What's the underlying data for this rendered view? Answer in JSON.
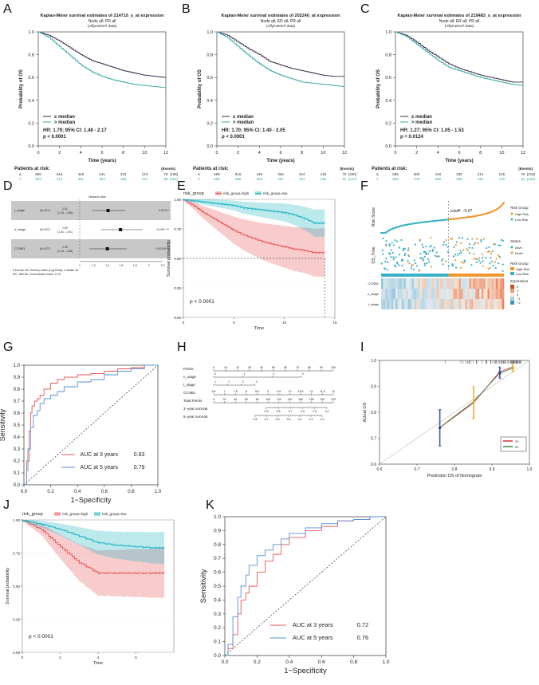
{
  "panel_labels": [
    "A",
    "B",
    "C",
    "D",
    "E",
    "F",
    "G",
    "H",
    "I",
    "J",
    "K"
  ],
  "km": [
    {
      "title": "Kaplan-Meier survival estimates of 214710_s_at expression",
      "sub1": "Node all; PR all",
      "sub2": "(Affymetrix® data)",
      "hr": "HR: 1.79; 95% CI: 1.48 - 2.17",
      "p": "p < 0.0001",
      "risk_low": [
        "596",
        "515",
        "425",
        "341",
        "222",
        "123",
        "75",
        "(198)"
      ],
      "risk_high": [
        "563",
        "472",
        "361",
        "264",
        "183",
        "121",
        "65",
        "(252)"
      ]
    },
    {
      "title": "Kaplan-Meier survival estimates of 202240_at expression",
      "sub1": "Node all; ER all; PR all",
      "sub2": "(Affymetrix® data)",
      "hr": "HR: 1.70; 95% CI: 1.40 - 2.05",
      "p": "p < 0.0001",
      "risk_low": [
        "599",
        "516",
        "425",
        "326",
        "224",
        "135",
        "79",
        "(200)"
      ],
      "risk_high": [
        "563",
        "469",
        "353",
        "207",
        "161",
        "109",
        "61",
        "(247)"
      ]
    },
    {
      "title": "Kaplan-Meier survival estimates of 219483_s_at expression",
      "sub1": "Node all; ER all; PR all",
      "sub2": "(Affymetrix® data)",
      "hr": "HR: 1.27; 95% CI: 1.05 - 1.53",
      "p": "p = 0.0124",
      "risk_low": [
        "598",
        "500",
        "418",
        "335",
        "214",
        "125",
        "76",
        "(218)"
      ],
      "risk_high": [
        "562",
        "479",
        "396",
        "300",
        "191",
        "119",
        "64",
        "(232)"
      ]
    }
  ],
  "km_common": {
    "xlabel": "Time (years)",
    "ylabel": "Probability of OS",
    "xticks": [
      "0",
      "2",
      "4",
      "6",
      "8",
      "10",
      "12"
    ],
    "yticks": [
      "0.0",
      "0.2",
      "0.4",
      "0.6",
      "0.8",
      "1.0"
    ],
    "leg_low": "≤ median",
    "leg_high": "> median",
    "risk_title": "Patients at risk:",
    "events": "(Events)",
    "risk_sym_low": "≤",
    "risk_sym_high": ">"
  },
  "forest": {
    "title": "Hazard ratio",
    "rows": [
      {
        "name": "t_stage",
        "n": "(N=327)",
        "ci": "1.41",
        "ci2": "(1.18 - 1.66)",
        "p": "0.0175 *"
      },
      {
        "name": "n_stage",
        "n": "(N=327)",
        "ci": "1.59",
        "ci2": "(1.31 - 1.91)",
        "p": "<0.001 ***"
      },
      {
        "name": "CCNB1",
        "n": "(N=327)",
        "ci": "1.40",
        "ci2": "(1.14 - 1.68)",
        "p": "0.00129 **"
      }
    ],
    "footnote1": "# Events: 50; Global p-value (Log-Rank): 2.3468e-16",
    "footnote2": "AIC: 589.96; Concordance Index: 0.75",
    "xticks": [
      "1",
      "1.2",
      "1.4",
      "1.6",
      "1.8",
      "2",
      "2.2"
    ]
  },
  "chart_data": [
    {
      "panel": "E",
      "type": "line",
      "legend_title": "risk_group",
      "series": [
        {
          "name": "risk_group=high",
          "color": "#e8575a",
          "x": [
            0,
            1,
            2,
            3,
            4,
            5,
            6,
            7,
            8,
            9,
            10,
            11,
            12,
            13,
            14
          ],
          "y": [
            1.0,
            0.95,
            0.89,
            0.84,
            0.79,
            0.74,
            0.7,
            0.67,
            0.64,
            0.62,
            0.6,
            0.58,
            0.57,
            0.55,
            0.55
          ]
        },
        {
          "name": "risk_group=low",
          "color": "#1fb6c1",
          "x": [
            0,
            1,
            2,
            3,
            4,
            5,
            6,
            7,
            8,
            9,
            10,
            11,
            12,
            13,
            14
          ],
          "y": [
            1.0,
            0.99,
            0.98,
            0.97,
            0.96,
            0.95,
            0.93,
            0.92,
            0.91,
            0.9,
            0.89,
            0.87,
            0.84,
            0.8,
            0.8
          ]
        }
      ],
      "xlabel": "Time",
      "ylabel": "Survival probability",
      "xticks": [
        "0",
        "5",
        "10",
        "15"
      ],
      "yticks": [
        "0.00",
        "0.25",
        "0.50",
        "0.75",
        "1.00"
      ],
      "p": "p < 0.0001"
    },
    {
      "panel": "G",
      "type": "line",
      "series": [
        {
          "name": "AUC at 3 years",
          "auc": "0.83",
          "color": "#e8575a",
          "x": [
            0,
            0.02,
            0.04,
            0.05,
            0.06,
            0.08,
            0.1,
            0.12,
            0.15,
            0.2,
            0.25,
            0.3,
            0.4,
            0.5,
            0.6,
            0.7,
            0.8,
            0.9,
            1.0
          ],
          "y": [
            0,
            0.2,
            0.45,
            0.6,
            0.66,
            0.7,
            0.72,
            0.75,
            0.8,
            0.85,
            0.88,
            0.9,
            0.92,
            0.93,
            0.95,
            0.97,
            0.98,
            1.0,
            1.0
          ]
        },
        {
          "name": "AUC at 5 years",
          "auc": "0.79",
          "color": "#5b8fd6",
          "x": [
            0,
            0.02,
            0.03,
            0.05,
            0.07,
            0.1,
            0.12,
            0.15,
            0.2,
            0.25,
            0.3,
            0.4,
            0.5,
            0.6,
            0.7,
            0.8,
            0.9,
            1.0
          ],
          "y": [
            0,
            0.12,
            0.3,
            0.48,
            0.58,
            0.62,
            0.68,
            0.72,
            0.75,
            0.78,
            0.82,
            0.86,
            0.88,
            0.92,
            0.95,
            0.97,
            1.0,
            1.0
          ]
        }
      ],
      "xlabel": "1−Specificity",
      "ylabel": "Sensitivity",
      "xticks": [
        "0.0",
        "0.2",
        "0.4",
        "0.6",
        "0.8",
        "1.0"
      ],
      "yticks": [
        "0.0",
        "0.1",
        "0.2",
        "0.3",
        "0.4",
        "0.5",
        "0.6",
        "0.7",
        "0.8",
        "0.9",
        "1.0"
      ]
    },
    {
      "panel": "I",
      "type": "line",
      "series": [
        {
          "name": "3Y",
          "color": "#d42020",
          "x": [
            0.76,
            0.85,
            0.92,
            0.955
          ],
          "y": [
            0.74,
            0.835,
            0.955,
            0.975
          ],
          "err": [
            0.07,
            0.06,
            0.02,
            0.015
          ]
        },
        {
          "name": "5Y",
          "color": "#2e7d32",
          "x": [
            0.76,
            0.85,
            0.92,
            0.955
          ],
          "y": [
            0.74,
            0.84,
            0.95,
            0.97
          ],
          "err": [
            0.07,
            0.06,
            0.02,
            0.015
          ]
        }
      ],
      "xlabel": "Prediction OS of Nomogram",
      "ylabel": "Actual OS",
      "xticks": [
        "0.6",
        "0.7",
        "0.8",
        "0.9",
        "1.0"
      ],
      "yticks": [
        "0.6",
        "0.7",
        "0.8",
        "0.9",
        "1.0"
      ]
    },
    {
      "panel": "J",
      "type": "line",
      "legend_title": "risk_group",
      "series": [
        {
          "name": "risk_group=high",
          "color": "#e8575a",
          "x": [
            0,
            1,
            2,
            3,
            4,
            5,
            6,
            7,
            7.5
          ],
          "y": [
            1.0,
            0.93,
            0.8,
            0.68,
            0.6,
            0.6,
            0.6,
            0.6,
            0.6
          ]
        },
        {
          "name": "risk_group=low",
          "color": "#1fb6c1",
          "x": [
            0,
            1,
            2,
            3,
            4,
            5,
            6,
            7,
            7.5
          ],
          "y": [
            1.0,
            0.97,
            0.93,
            0.88,
            0.83,
            0.81,
            0.8,
            0.79,
            0.79
          ]
        }
      ],
      "xlabel": "Time",
      "ylabel": "Survival probability",
      "xticks": [
        "0",
        "2",
        "4",
        "6"
      ],
      "yticks": [
        "0.00",
        "0.25",
        "0.50",
        "0.75",
        "1.00"
      ],
      "p": "p < 0.0001"
    },
    {
      "panel": "K",
      "type": "line",
      "series": [
        {
          "name": "AUC at 3 years",
          "auc": "0.72",
          "color": "#e8575a",
          "x": [
            0,
            0.02,
            0.05,
            0.08,
            0.1,
            0.13,
            0.15,
            0.2,
            0.25,
            0.3,
            0.35,
            0.4,
            0.5,
            0.6,
            0.7,
            0.8,
            0.9,
            1.0
          ],
          "y": [
            0,
            0.05,
            0.15,
            0.3,
            0.4,
            0.45,
            0.5,
            0.6,
            0.68,
            0.73,
            0.8,
            0.85,
            0.9,
            0.93,
            0.97,
            0.98,
            1.0,
            1.0
          ]
        },
        {
          "name": "AUC at 5 years",
          "auc": "0.76",
          "color": "#5b8fd6",
          "x": [
            0,
            0.02,
            0.05,
            0.08,
            0.1,
            0.13,
            0.15,
            0.2,
            0.25,
            0.3,
            0.35,
            0.4,
            0.5,
            0.6,
            0.7,
            0.8,
            0.9,
            1.0
          ],
          "y": [
            0,
            0.08,
            0.28,
            0.42,
            0.5,
            0.58,
            0.65,
            0.72,
            0.76,
            0.8,
            0.84,
            0.88,
            0.92,
            0.95,
            0.97,
            0.98,
            1.0,
            1.0
          ]
        }
      ],
      "xlabel": "1−Specificity",
      "ylabel": "Sensitivity",
      "xticks": [
        "0.0",
        "0.2",
        "0.4",
        "0.6",
        "0.8",
        "1.0"
      ],
      "yticks": [
        "0.0",
        "0.1",
        "0.2",
        "0.3",
        "0.4",
        "0.5",
        "0.6",
        "0.7",
        "0.8",
        "0.9",
        "1.0"
      ]
    }
  ],
  "riskplot": {
    "ylabel1": "Risk Score",
    "ylabel2": "OS_Time",
    "cutoff": "cutoff: −0.07",
    "leg_group": "Risk Group",
    "leg_high": "High Risk",
    "leg_low": "Low Risk",
    "leg_status": "Status",
    "leg_alive": "Alive",
    "leg_dead": "Dead",
    "leg_expr": "Expression",
    "expr_ticks": [
      "2",
      "1",
      "0",
      "−1",
      "−2"
    ],
    "genes": [
      "CCNB1",
      "n_stage",
      "t_stage"
    ]
  },
  "nomogram": {
    "rows": [
      "Points",
      "n_stage",
      "t_stage",
      "CCNB1",
      "Total Points",
      "3−year survival",
      "5−year survival"
    ],
    "points_ticks": [
      "0",
      "10",
      "20",
      "30",
      "40",
      "50",
      "60",
      "70",
      "80",
      "90",
      "100"
    ],
    "ccnb1_ticks": [
      "6.5",
      "7",
      "7.5",
      "8",
      "8.5",
      "9",
      "9.5",
      "10",
      "10.5",
      "11",
      "11.5",
      "12"
    ],
    "total_ticks": [
      "0",
      "20",
      "40",
      "60",
      "80",
      "100",
      "120",
      "140",
      "160",
      "180",
      "200",
      "220"
    ],
    "surv3_ticks": [
      "0.9",
      "0.8",
      "0.7",
      "0.6",
      "0.5",
      "0.4"
    ],
    "surv5_ticks": [
      "0.8",
      "0.7",
      "0.6",
      "0.5",
      "0.4",
      "0.3",
      "0.2"
    ]
  }
}
